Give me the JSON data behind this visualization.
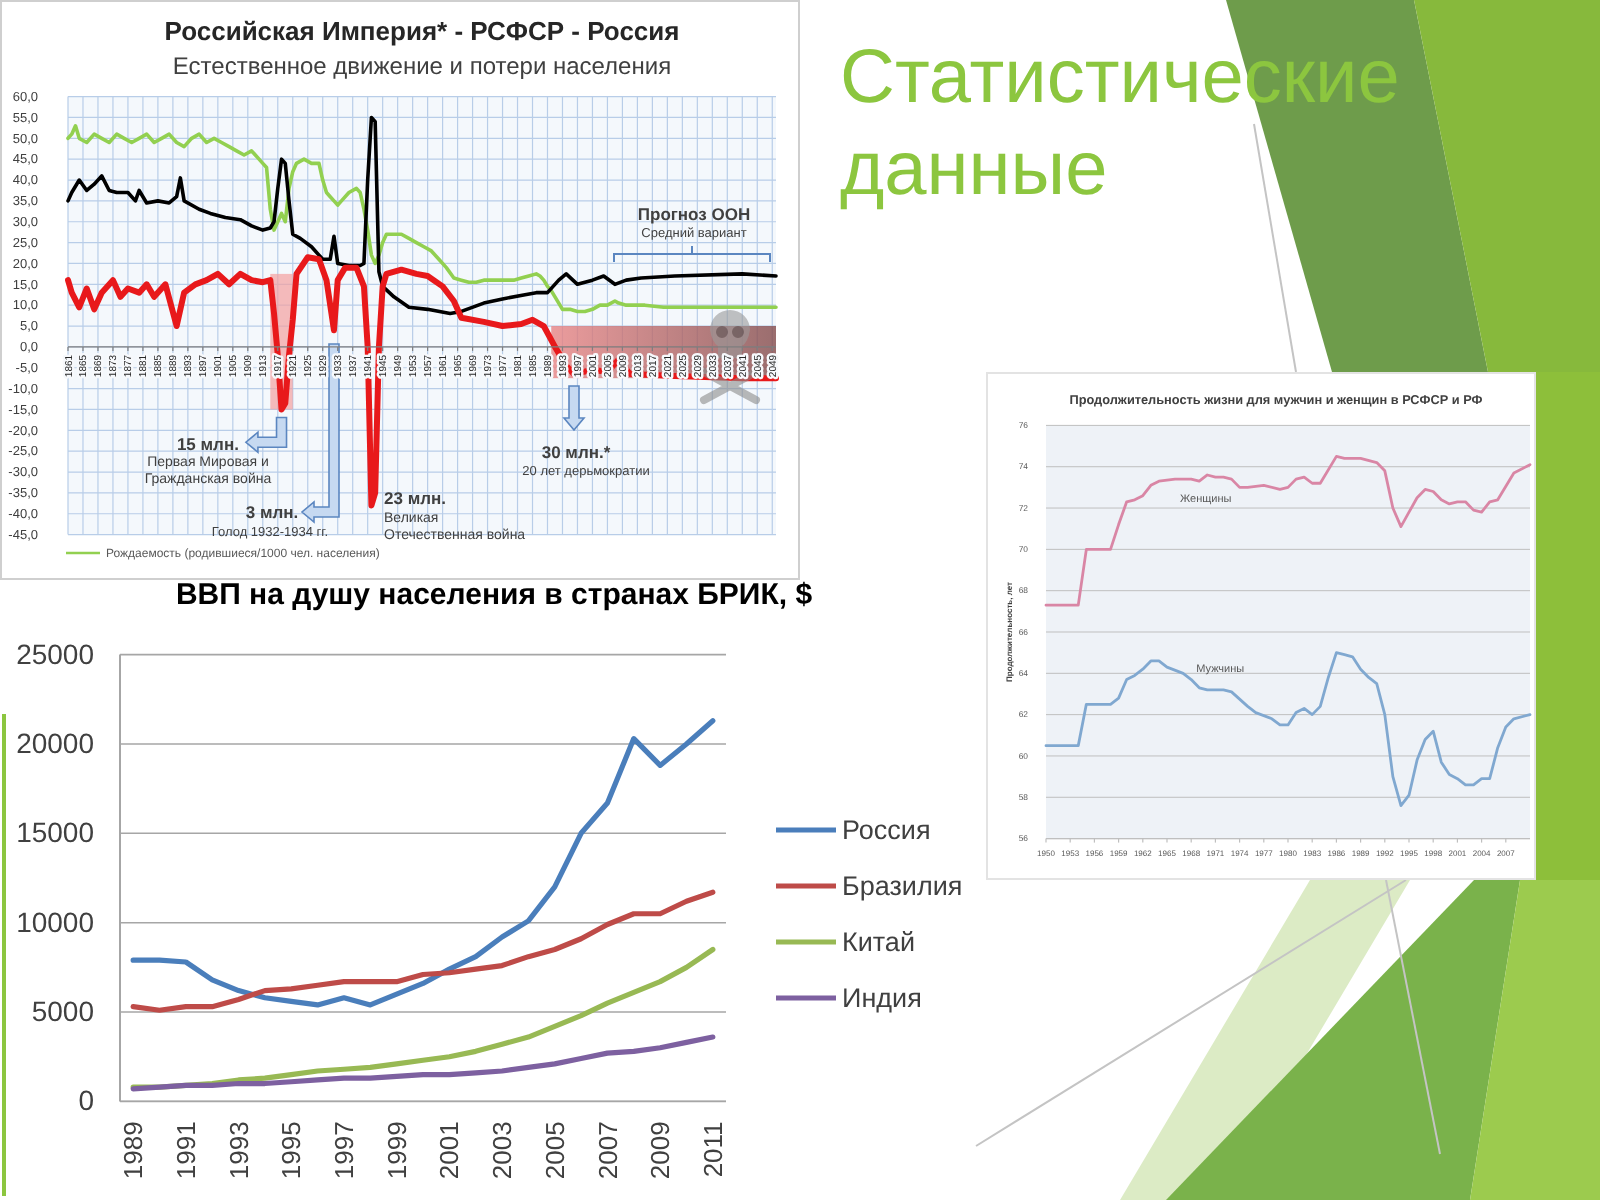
{
  "chart_data": [
    {
      "type": "line",
      "title": "Российская Империя* - РСФСР - Россия",
      "subtitle": "Естественное движение и потери населения",
      "xlim": [
        1861,
        2050
      ],
      "xticks": [
        1861,
        1865,
        1869,
        1873,
        1877,
        1881,
        1885,
        1889,
        1893,
        1897,
        1901,
        1905,
        1909,
        1913,
        1917,
        1921,
        1925,
        1929,
        1933,
        1937,
        1941,
        1945,
        1949,
        1953,
        1957,
        1961,
        1965,
        1969,
        1973,
        1977,
        1981,
        1985,
        1989,
        1993,
        1997,
        2001,
        2005,
        2009,
        2013,
        2017,
        2021,
        2025,
        2029,
        2033,
        2037,
        2041,
        2045,
        2049
      ],
      "ylim": [
        -45,
        60
      ],
      "yticks": [
        {
          "value": -45,
          "label": "-45,0"
        },
        {
          "value": -40,
          "label": "-40,0"
        },
        {
          "value": -35,
          "label": "-35,0"
        },
        {
          "value": -30,
          "label": "-30,0"
        },
        {
          "value": -25,
          "label": "-25,0"
        },
        {
          "value": -20,
          "label": "-20,0"
        },
        {
          "value": -15,
          "label": "-15,0"
        },
        {
          "value": -10,
          "label": "-10,0"
        },
        {
          "value": -5,
          "label": "-5,0"
        },
        {
          "value": 0,
          "label": "0,0"
        },
        {
          "value": 5,
          "label": "5,0"
        },
        {
          "value": 10,
          "label": "10,0"
        },
        {
          "value": 15,
          "label": "15,0"
        },
        {
          "value": 20,
          "label": "20,0"
        },
        {
          "value": 25,
          "label": "25,0"
        },
        {
          "value": 30,
          "label": "30,0"
        },
        {
          "value": 35,
          "label": "35,0"
        },
        {
          "value": 40,
          "label": "40,0"
        },
        {
          "value": 45,
          "label": "45,0"
        },
        {
          "value": 50,
          "label": "50,0"
        },
        {
          "value": 55,
          "label": "55,0"
        },
        {
          "value": 60,
          "label": "60,0"
        }
      ],
      "grid": true,
      "legend": "bottom",
      "series": [
        {
          "name": "Рождаемость (родившиеся/1000 чел. населения)",
          "color": "#92d050",
          "x": [
            1861,
            1862,
            1863,
            1864,
            1866,
            1868,
            1870,
            1872,
            1874,
            1876,
            1878,
            1880,
            1882,
            1884,
            1886,
            1888,
            1890,
            1892,
            1894,
            1896,
            1898,
            1900,
            1902,
            1904,
            1906,
            1908,
            1910,
            1912,
            1913,
            1914,
            1915,
            1916,
            1917,
            1918,
            1919,
            1920,
            1921,
            1922,
            1924,
            1926,
            1928,
            1929,
            1930,
            1931,
            1932,
            1933,
            1934,
            1936,
            1938,
            1939,
            1940,
            1941,
            1942,
            1943,
            1944,
            1945,
            1946,
            1948,
            1950,
            1952,
            1954,
            1956,
            1958,
            1960,
            1962,
            1964,
            1966,
            1968,
            1970,
            1972,
            1974,
            1976,
            1978,
            1980,
            1982,
            1984,
            1986,
            1987,
            1988,
            1989,
            1990,
            1991,
            1992,
            1993,
            1995,
            1997,
            1999,
            2001,
            2003,
            2005,
            2007,
            2008,
            2010,
            2015,
            2020,
            2030,
            2040,
            2050
          ],
          "values": [
            50,
            51,
            53,
            50,
            49,
            51,
            50,
            49,
            51,
            50,
            49,
            50,
            51,
            49,
            50,
            51,
            49,
            48,
            50,
            51,
            49,
            50,
            49,
            48,
            47,
            46,
            47,
            45,
            44,
            43,
            33,
            28,
            30,
            32,
            30,
            38,
            42,
            44,
            45,
            44,
            44,
            40,
            37,
            36,
            35,
            34,
            35,
            37,
            38,
            37,
            33,
            28,
            22,
            20,
            22,
            25,
            27,
            27,
            27,
            26,
            25,
            24,
            23,
            21,
            19,
            16.5,
            16,
            15.5,
            15.5,
            16,
            16,
            16,
            16,
            16,
            16.5,
            17,
            17.5,
            17,
            16,
            14.5,
            13.5,
            12,
            10.5,
            9,
            9,
            8.5,
            8.5,
            9,
            10,
            10,
            11,
            10.5,
            10,
            10,
            9.5,
            9.5,
            9.5,
            9.5
          ]
        },
        {
          "color": "#000000",
          "x": [
            1861,
            1862,
            1864,
            1866,
            1868,
            1870,
            1872,
            1874,
            1877,
            1879,
            1880,
            1882,
            1885,
            1888,
            1890,
            1891,
            1892,
            1896,
            1899,
            1903,
            1907,
            1910,
            1913,
            1915,
            1916,
            1917,
            1918,
            1919,
            1920,
            1921,
            1923,
            1926,
            1928,
            1929,
            1931,
            1932,
            1933,
            1936,
            1939,
            1940,
            1941,
            1942,
            1943,
            1944,
            1945,
            1948,
            1952,
            1957,
            1963,
            1966,
            1972,
            1977,
            1983,
            1986,
            1989,
            1992,
            1994,
            1997,
            2001,
            2004,
            2007,
            2010,
            2014,
            2023,
            2041,
            2050
          ],
          "values": [
            35,
            37,
            40,
            37.5,
            39,
            41,
            37.5,
            37,
            37,
            35,
            37.5,
            34.5,
            35,
            34.5,
            36,
            40.5,
            35,
            33,
            32,
            31,
            30.5,
            29,
            28,
            28.5,
            30,
            38,
            45,
            44,
            35,
            27,
            26,
            24,
            22,
            21,
            21,
            26.5,
            20,
            19.5,
            19.5,
            20,
            40,
            55,
            54,
            18,
            14.5,
            12,
            9.5,
            9,
            8,
            8.5,
            10.5,
            11.5,
            12.5,
            13,
            13,
            16,
            17.5,
            15,
            16,
            17,
            15,
            16,
            16.5,
            17,
            17.5,
            17
          ]
        },
        {
          "color": "#e8191b",
          "x": [
            1861,
            1862,
            1864,
            1866,
            1868,
            1870,
            1873,
            1875,
            1877,
            1880,
            1882,
            1884,
            1887,
            1890,
            1892,
            1895,
            1898,
            1901,
            1904,
            1907,
            1910,
            1913,
            1915,
            1916,
            1917,
            1918,
            1919,
            1920,
            1921,
            1922,
            1925,
            1928,
            1930,
            1932,
            1933,
            1935,
            1938,
            1940,
            1941,
            1942,
            1943,
            1944,
            1945,
            1946,
            1950,
            1954,
            1957,
            1961,
            1964,
            1966,
            1972,
            1977,
            1982,
            1985,
            1988,
            1991,
            1994,
            1996,
            2001,
            2005,
            2008,
            2011,
            2023,
            2041,
            2050
          ],
          "values": [
            16,
            13,
            9.5,
            14,
            9,
            13,
            16,
            12,
            14,
            13,
            15,
            12,
            15,
            5,
            13,
            15,
            16,
            17.5,
            15,
            17.5,
            16,
            15.5,
            16,
            8,
            -2,
            -15,
            -13.5,
            -2,
            6.5,
            17.5,
            21.5,
            21,
            16,
            4,
            16,
            19,
            19,
            14.5,
            0,
            -38,
            -35,
            0,
            14.5,
            17.5,
            18.5,
            17.5,
            17,
            14.5,
            11,
            7,
            6,
            5,
            5.5,
            6.5,
            5,
            0,
            -4.5,
            -6.5,
            -5.5,
            -6,
            -3,
            -6.5,
            -7,
            -7.5,
            -7.5
          ]
        }
      ],
      "bands": [
        {
          "axis": "x",
          "from": 1915,
          "to": 1921,
          "color": "#f3a0a0"
        },
        {
          "axis": "x",
          "from": 1990,
          "to": 2050,
          "color": "#e98585"
        }
      ],
      "annotations": [
        {
          "text": "15 млн.",
          "x": 1918,
          "y": -15
        },
        "Первая Мировая и Гражданская война",
        "3 млн.",
        "Голод 1932-1934 гг.",
        {
          "text": "23 млн.",
          "x": 1942,
          "y": -38
        },
        "Великая Отечественная война",
        "30 млн.*",
        "20 лет дерьмократии",
        "Прогноз ООН",
        "Средний вариант"
      ]
    },
    {
      "type": "other",
      "title": "Статистические данные"
    },
    {
      "type": "line",
      "title": "ВВП на душу населения в странах БРИК, $",
      "categories": [
        "1989",
        null,
        "1991",
        null,
        "1993",
        null,
        "1995",
        null,
        "1997",
        null,
        "1999",
        null,
        "2001",
        null,
        "2003",
        null,
        "2005",
        null,
        "2007",
        null,
        "2009",
        null,
        "2011"
      ],
      "ylim": [
        0,
        25000
      ],
      "yticks": [
        0,
        5000,
        10000,
        15000,
        20000,
        25000
      ],
      "grid": "y",
      "legend": "right",
      "series": [
        {
          "name": "Россия",
          "color": "#4a7ebb",
          "values": [
            7900,
            7900,
            7800,
            6800,
            6200,
            5800,
            5600,
            5400,
            5800,
            5400,
            6000,
            6600,
            7400,
            8100,
            9200,
            10100,
            12000,
            15000,
            16700,
            20300,
            18800,
            20000,
            21300
          ]
        },
        {
          "name": "Бразилия",
          "color": "#be4b48",
          "values": [
            5300,
            5100,
            5300,
            5300,
            5700,
            6200,
            6300,
            6500,
            6700,
            6700,
            6700,
            7100,
            7200,
            7400,
            7600,
            8100,
            8500,
            9100,
            9900,
            10500,
            10500,
            11200,
            11700
          ]
        },
        {
          "name": "Китай",
          "color": "#98b954",
          "values": [
            800,
            800,
            900,
            1000,
            1200,
            1300,
            1500,
            1700,
            1800,
            1900,
            2100,
            2300,
            2500,
            2800,
            3200,
            3600,
            4200,
            4800,
            5500,
            6100,
            6700,
            7500,
            8500
          ]
        },
        {
          "name": "Индия",
          "color": "#7d60a0",
          "values": [
            700,
            800,
            900,
            900,
            1000,
            1000,
            1100,
            1200,
            1300,
            1300,
            1400,
            1500,
            1500,
            1600,
            1700,
            1900,
            2100,
            2400,
            2700,
            2800,
            3000,
            3300,
            3600
          ]
        }
      ]
    },
    {
      "type": "line",
      "title": "Продолжительность жизни для мужчин и женщин в РСФСР и РФ",
      "ylabel": "Продолжительность, лет",
      "xlim": [
        1950,
        2010
      ],
      "xticks": [
        1950,
        1953,
        1956,
        1959,
        1962,
        1965,
        1968,
        1971,
        1974,
        1977,
        1980,
        1983,
        1986,
        1989,
        1992,
        1995,
        1998,
        2001,
        2004,
        2007
      ],
      "ylim": [
        56,
        76
      ],
      "yticks": [
        56,
        58,
        60,
        62,
        64,
        66,
        68,
        70,
        72,
        74,
        76
      ],
      "grid": "y",
      "series": [
        {
          "name": "Женщины",
          "color": "#d986a5",
          "x": [
            1950,
            1954,
            1955,
            1958,
            1959,
            1960,
            1961,
            1962,
            1963,
            1964,
            1966,
            1968,
            1969,
            1970,
            1971,
            1972,
            1973,
            1974,
            1975,
            1977,
            1979,
            1980,
            1981,
            1982,
            1983,
            1984,
            1986,
            1987,
            1989,
            1991,
            1992,
            1993,
            1994,
            1995,
            1996,
            1997,
            1998,
            1999,
            2000,
            2001,
            2002,
            2003,
            2004,
            2005,
            2006,
            2008,
            2010
          ],
          "values": [
            67.3,
            67.3,
            70,
            70,
            71.2,
            72.3,
            72.4,
            72.6,
            73.1,
            73.3,
            73.4,
            73.4,
            73.3,
            73.6,
            73.5,
            73.5,
            73.4,
            73,
            73,
            73.1,
            72.9,
            73,
            73.4,
            73.5,
            73.2,
            73.2,
            74.5,
            74.4,
            74.4,
            74.2,
            73.8,
            72,
            71.1,
            71.8,
            72.5,
            72.9,
            72.8,
            72.4,
            72.2,
            72.3,
            72.3,
            71.9,
            71.8,
            72.3,
            72.4,
            73.7,
            74.1
          ]
        },
        {
          "name": "Мужчины",
          "color": "#80a8d0",
          "x": [
            1950,
            1954,
            1955,
            1958,
            1959,
            1960,
            1961,
            1962,
            1963,
            1964,
            1965,
            1967,
            1968,
            1969,
            1970,
            1972,
            1973,
            1975,
            1976,
            1978,
            1979,
            1980,
            1981,
            1982,
            1983,
            1984,
            1985,
            1986,
            1987,
            1988,
            1989,
            1990,
            1991,
            1992,
            1993,
            1994,
            1995,
            1996,
            1997,
            1998,
            1999,
            2000,
            2001,
            2002,
            2003,
            2004,
            2005,
            2006,
            2007,
            2008,
            2010
          ],
          "values": [
            60.5,
            60.5,
            62.5,
            62.5,
            62.8,
            63.7,
            63.9,
            64.2,
            64.6,
            64.6,
            64.3,
            64,
            63.7,
            63.3,
            63.2,
            63.2,
            63.1,
            62.4,
            62.1,
            61.8,
            61.5,
            61.5,
            62.1,
            62.3,
            62,
            62.4,
            63.8,
            65,
            64.9,
            64.8,
            64.2,
            63.8,
            63.5,
            62,
            59,
            57.6,
            58.1,
            59.8,
            60.8,
            61.2,
            59.7,
            59.1,
            58.9,
            58.6,
            58.6,
            58.9,
            58.9,
            60.4,
            61.4,
            61.8,
            62
          ]
        }
      ]
    }
  ]
}
